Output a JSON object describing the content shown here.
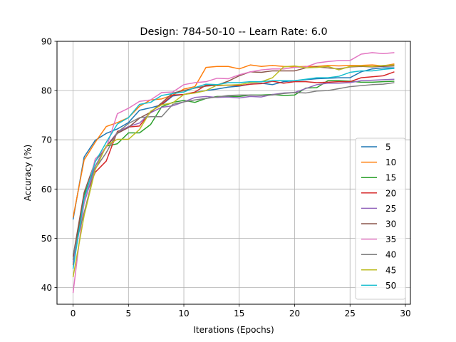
{
  "chart_data": {
    "type": "line",
    "title": "Design: 784-50-10 -- Learn Rate: 6.0",
    "xlabel": "Iterations (Epochs)",
    "ylabel": "Accuracy (%)",
    "xlim": [
      -1.45,
      30.45
    ],
    "ylim": [
      36.6,
      90
    ],
    "xticks": [
      0,
      5,
      10,
      15,
      20,
      25,
      30
    ],
    "yticks": [
      40,
      50,
      60,
      70,
      80,
      90
    ],
    "grid": true,
    "legend_position": "lower right",
    "x": [
      0,
      1,
      2,
      3,
      4,
      5,
      6,
      7,
      8,
      9,
      10,
      11,
      12,
      13,
      14,
      15,
      16,
      17,
      18,
      19,
      20,
      21,
      22,
      23,
      24,
      25,
      26,
      27,
      28,
      29
    ],
    "series": [
      {
        "name": "5",
        "color": "#1f77b4",
        "values": [
          53.8,
          66.5,
          69.9,
          71.3,
          72.2,
          73.5,
          76.0,
          76.5,
          77.1,
          78.9,
          79.2,
          79.6,
          80.0,
          80.3,
          80.7,
          80.9,
          81.3,
          81.5,
          81.2,
          81.8,
          82.0,
          82.2,
          82.4,
          82.5,
          82.6,
          82.6,
          83.8,
          84.4,
          84.6,
          84.6
        ]
      },
      {
        "name": "10",
        "color": "#ff7f0e",
        "values": [
          54.2,
          65.9,
          69.5,
          72.7,
          73.5,
          74.5,
          76.8,
          78.1,
          78.3,
          79.1,
          80.3,
          80.8,
          84.7,
          84.9,
          84.9,
          84.4,
          85.2,
          84.9,
          85.1,
          84.9,
          84.8,
          84.9,
          84.9,
          85.1,
          85.0,
          85.1,
          85.1,
          85.2,
          85.0,
          85.4
        ]
      },
      {
        "name": "15",
        "color": "#2ca02c",
        "values": [
          45.6,
          58.8,
          64.6,
          68.7,
          69.2,
          71.4,
          71.4,
          73.1,
          76.7,
          77.6,
          78.0,
          77.6,
          78.4,
          78.8,
          78.8,
          78.8,
          79.1,
          79.1,
          79.2,
          79.0,
          79.1,
          80.5,
          80.6,
          82.0,
          82.0,
          81.9,
          81.7,
          81.7,
          81.8,
          81.9
        ]
      },
      {
        "name": "20",
        "color": "#d62728",
        "values": [
          44.6,
          57.9,
          63.4,
          65.7,
          71.7,
          72.6,
          72.8,
          75.7,
          77.2,
          79.1,
          79.2,
          79.7,
          81.1,
          81.0,
          81.1,
          81.0,
          81.3,
          81.4,
          81.9,
          81.5,
          81.8,
          81.8,
          81.6,
          81.7,
          81.8,
          81.8,
          82.6,
          82.8,
          83.0,
          83.8
        ]
      },
      {
        "name": "25",
        "color": "#9467bd",
        "values": [
          45.1,
          57.1,
          64.6,
          68.7,
          71.5,
          72.7,
          73.4,
          75.5,
          76.6,
          76.9,
          77.7,
          78.6,
          78.8,
          78.6,
          78.7,
          78.5,
          78.8,
          78.7,
          79.2,
          79.5,
          79.6,
          80.4,
          81.2,
          81.5,
          81.5,
          81.6,
          82.0,
          82.1,
          82.2,
          82.3
        ]
      },
      {
        "name": "30",
        "color": "#8c564b",
        "values": [
          46.3,
          59.3,
          65.6,
          68.6,
          71.3,
          72.5,
          74.4,
          75.6,
          77.5,
          79.5,
          80.0,
          80.5,
          80.9,
          81.1,
          81.9,
          83.0,
          83.8,
          83.7,
          84.0,
          84.0,
          84.0,
          84.6,
          84.8,
          84.6,
          84.4,
          84.8,
          84.9,
          84.8,
          84.9,
          85.0
        ]
      },
      {
        "name": "35",
        "color": "#e377c2",
        "values": [
          38.9,
          57.4,
          66.1,
          68.4,
          75.3,
          76.4,
          77.8,
          78.1,
          79.6,
          79.7,
          81.2,
          81.6,
          81.8,
          82.5,
          82.4,
          83.2,
          83.8,
          84.2,
          84.4,
          84.4,
          84.7,
          84.8,
          85.6,
          85.9,
          86.1,
          86.1,
          87.4,
          87.7,
          87.5,
          87.7
        ]
      },
      {
        "name": "40",
        "color": "#7f7f7f",
        "values": [
          46.7,
          55.2,
          64.1,
          67.4,
          71.5,
          73.3,
          74.5,
          74.7,
          74.7,
          77.2,
          77.7,
          78.1,
          78.4,
          78.7,
          79.0,
          79.1,
          79.1,
          79.0,
          79.1,
          79.4,
          79.6,
          79.5,
          79.9,
          80.0,
          80.4,
          80.8,
          81.0,
          81.2,
          81.3,
          81.6
        ]
      },
      {
        "name": "45",
        "color": "#bcbd22",
        "values": [
          42.1,
          54.6,
          63.9,
          68.8,
          70.1,
          70.1,
          72.1,
          75.8,
          77.1,
          77.5,
          79.2,
          79.5,
          80.0,
          81.1,
          81.1,
          81.2,
          81.6,
          81.8,
          82.6,
          84.8,
          85.0,
          84.6,
          84.7,
          84.9,
          84.2,
          84.9,
          85.0,
          84.9,
          85.1,
          85.2
        ]
      },
      {
        "name": "50",
        "color": "#17becf",
        "values": [
          43.8,
          58.0,
          65.5,
          69.5,
          73.2,
          74.5,
          77.2,
          77.6,
          79.0,
          79.4,
          79.7,
          80.6,
          81.3,
          81.2,
          81.6,
          81.6,
          81.8,
          81.8,
          82.0,
          82.0,
          82.0,
          82.3,
          82.6,
          82.6,
          82.9,
          83.7,
          84.0,
          84.0,
          84.3,
          84.5
        ]
      }
    ]
  }
}
